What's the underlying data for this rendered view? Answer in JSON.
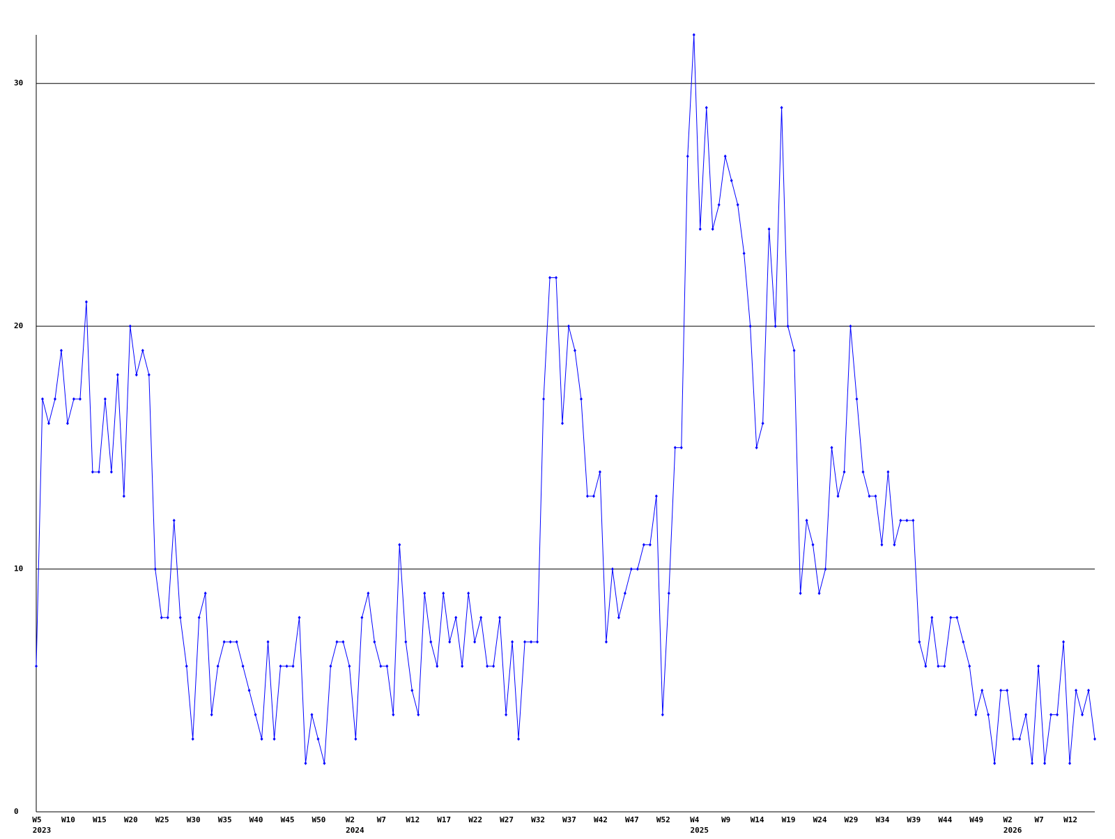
{
  "chart_data": {
    "type": "line",
    "categories": [
      "W5",
      null,
      null,
      null,
      null,
      "W10",
      null,
      null,
      null,
      null,
      "W15",
      null,
      null,
      null,
      null,
      "W20",
      null,
      null,
      null,
      null,
      "W25",
      null,
      null,
      null,
      null,
      "W30",
      null,
      null,
      null,
      null,
      "W35",
      null,
      null,
      null,
      null,
      "W40",
      null,
      null,
      null,
      null,
      "W45",
      null,
      null,
      null,
      null,
      "W50",
      null,
      null,
      null,
      null,
      "W2",
      null,
      null,
      null,
      null,
      "W7",
      null,
      null,
      null,
      null,
      "W12",
      null,
      null,
      null,
      null,
      "W17",
      null,
      null,
      null,
      null,
      "W22",
      null,
      null,
      null,
      null,
      "W27",
      null,
      null,
      null,
      null,
      "W32",
      null,
      null,
      null,
      null,
      "W37",
      null,
      null,
      null,
      null,
      "W42",
      null,
      null,
      null,
      null,
      "W47",
      null,
      null,
      null,
      null,
      "W52",
      null,
      null,
      null,
      null,
      "W4",
      null,
      null,
      null,
      null,
      "W9",
      null,
      null,
      null,
      null,
      "W14",
      null,
      null,
      null,
      null,
      "W19",
      null,
      null,
      null,
      null,
      "W24",
      null,
      null,
      null,
      null,
      "W29",
      null,
      null,
      null,
      null,
      "W34",
      null,
      null,
      null,
      null,
      "W39",
      null,
      null,
      null,
      null,
      "W44",
      null,
      null,
      null,
      null,
      "W49",
      null,
      null,
      null,
      null,
      "W2",
      null,
      null,
      null,
      null,
      "W7",
      null,
      null,
      null,
      null,
      "W12",
      null,
      null,
      null,
      null
    ],
    "years": [
      {
        "label": "2023",
        "category": 0
      },
      {
        "label": "2024",
        "category": 50
      },
      {
        "label": "2025",
        "category": 105
      },
      {
        "label": "2026",
        "category": 155
      }
    ],
    "series": [
      {
        "color": "#0000ff",
        "values": [
          6,
          17,
          16,
          17,
          19,
          16,
          17,
          17,
          21,
          14,
          14,
          17,
          14,
          18,
          13,
          20,
          18,
          19,
          18,
          10,
          8,
          8,
          12,
          8,
          6,
          3,
          8,
          9,
          4,
          6,
          7,
          7,
          7,
          6,
          5,
          4,
          3,
          7,
          3,
          6,
          6,
          6,
          8,
          2,
          4,
          3,
          2,
          6,
          7,
          7,
          6,
          3,
          8,
          9,
          7,
          6,
          6,
          4,
          11,
          7,
          5,
          4,
          9,
          7,
          6,
          9,
          7,
          8,
          6,
          9,
          7,
          8,
          6,
          6,
          8,
          4,
          7,
          3,
          7,
          7,
          7,
          17,
          22,
          22,
          16,
          20,
          19,
          17,
          13,
          13,
          14,
          7,
          10,
          8,
          9,
          10,
          10,
          11,
          11,
          13,
          4,
          9,
          15,
          15,
          27,
          32,
          24,
          29,
          24,
          25,
          27,
          26,
          25,
          23,
          20,
          15,
          16,
          24,
          20,
          29,
          20,
          19,
          9,
          12,
          11,
          9,
          10,
          15,
          13,
          14,
          20,
          17,
          14,
          13,
          13,
          11,
          14,
          11,
          12,
          12,
          12,
          7,
          6,
          8,
          6,
          6,
          8,
          8,
          7,
          6,
          4,
          5,
          4,
          2,
          5,
          5,
          3,
          3,
          4,
          2,
          6,
          2,
          4,
          4,
          7,
          2,
          5,
          4,
          5,
          3
        ]
      }
    ],
    "ylim": [
      0,
      32
    ],
    "yticks": [
      0,
      10,
      20,
      30
    ],
    "grid": true
  }
}
